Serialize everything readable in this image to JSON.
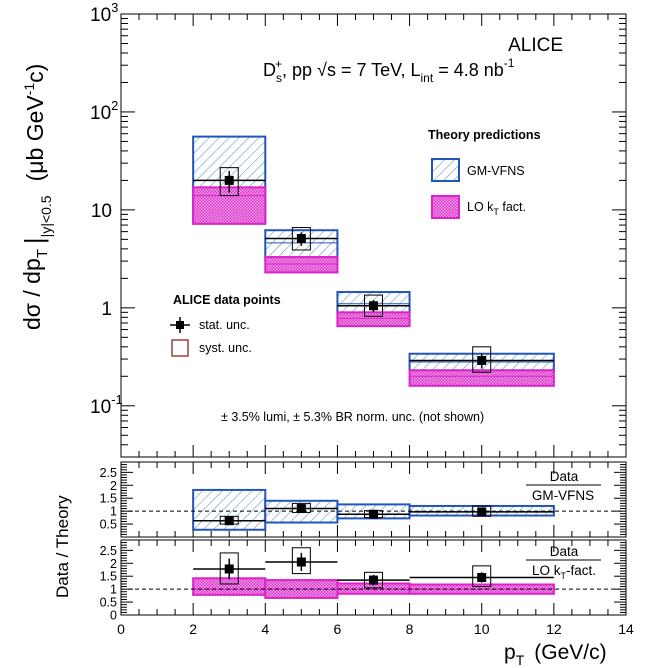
{
  "chart_data": [
    {
      "type": "scatter",
      "panel": "cross-section",
      "experiment": "ALICE",
      "subtitle_parts": {
        "particle": "D",
        "particle_sub": "s",
        "particle_sup": "+",
        "system": ", pp ",
        "energy": "s = 7 TeV, L",
        "lumi_sub": "int",
        "lumi_val": " = 4.8 nb",
        "lumi_sup": "-1"
      },
      "ylabel": "dσ / dp_T |_{|y|<0.5}  (μb GeV^{-1}c)",
      "ylabel_parts": {
        "main": "dσ / dp",
        "sub1": "T",
        "bar": "|",
        "sub2": "|y|<0.5",
        "unit1": "(μb GeV",
        "unit_sup": "-1",
        "unit2": "c)"
      },
      "y_scale": "log",
      "ylim": [
        0.03,
        1000
      ],
      "y_tick_labels": [
        {
          "value": 0.1,
          "base": "10",
          "exp": "-1"
        },
        {
          "value": 1,
          "base": "1",
          "exp": ""
        },
        {
          "value": 10,
          "base": "10",
          "exp": ""
        },
        {
          "value": 100,
          "base": "10",
          "exp": "2"
        },
        {
          "value": 1000,
          "base": "10",
          "exp": "3"
        }
      ],
      "xlim": [
        0,
        14
      ],
      "series": [
        {
          "name": "stat. unc.",
          "points": [
            {
              "x": 3,
              "y": 20,
              "xlo": 2,
              "xhi": 4,
              "ylo": 15,
              "yhi": 25
            },
            {
              "x": 5,
              "y": 5.1,
              "xlo": 4,
              "xhi": 6,
              "ylo": 4.3,
              "yhi": 5.9
            },
            {
              "x": 7,
              "y": 1.05,
              "xlo": 6,
              "xhi": 8,
              "ylo": 0.91,
              "yhi": 1.2
            },
            {
              "x": 10,
              "y": 0.29,
              "xlo": 8,
              "xhi": 12,
              "ylo": 0.24,
              "yhi": 0.34
            }
          ]
        },
        {
          "name": "syst. unc.",
          "boxes": [
            {
              "x": 3,
              "ylo": 14,
              "yhi": 27
            },
            {
              "x": 5,
              "ylo": 3.9,
              "yhi": 6.6
            },
            {
              "x": 7,
              "ylo": 0.82,
              "yhi": 1.35
            },
            {
              "x": 10,
              "ylo": 0.22,
              "yhi": 0.4
            }
          ]
        },
        {
          "name": "GM-VFNS",
          "bands": [
            {
              "xlo": 2,
              "xhi": 4,
              "ylo": 7.5,
              "yhi": 56,
              "central": 20
            },
            {
              "xlo": 4,
              "xhi": 6,
              "ylo": 3.1,
              "yhi": 6.2,
              "central": 4.6
            },
            {
              "xlo": 6,
              "xhi": 8,
              "ylo": 0.85,
              "yhi": 1.45,
              "central": 1.1
            },
            {
              "xlo": 8,
              "xhi": 12,
              "ylo": 0.23,
              "yhi": 0.34,
              "central": 0.28
            }
          ]
        },
        {
          "name": "LO k_T fact.",
          "bands": [
            {
              "xlo": 2,
              "xhi": 4,
              "ylo": 7.2,
              "yhi": 17,
              "central": 14
            },
            {
              "xlo": 4,
              "xhi": 6,
              "ylo": 2.3,
              "yhi": 3.3,
              "central": 2.8
            },
            {
              "xlo": 6,
              "xhi": 8,
              "ylo": 0.65,
              "yhi": 0.9,
              "central": 0.78
            },
            {
              "xlo": 8,
              "xhi": 12,
              "ylo": 0.16,
              "yhi": 0.23,
              "central": 0.2
            }
          ]
        }
      ],
      "legend_theory": {
        "title": "Theory predictions",
        "gmvfns": "GM-VFNS",
        "lo_main": "LO k",
        "lo_sub": "T",
        "lo_rest": " fact."
      },
      "legend_data": {
        "title": "ALICE data points",
        "stat": "stat. unc.",
        "syst": "syst. unc."
      },
      "annotation": "± 3.5% lumi, ± 5.3% BR norm. unc. (not shown)",
      "colors": {
        "gmvfns": "#2255bb",
        "gmvfns_fill": "#c9dcec",
        "lo": "#dd22cc",
        "lo_fill": "#ee88e4",
        "syst": "#881111"
      }
    },
    {
      "type": "scatter",
      "panel": "ratio GM-VFNS",
      "ratio_label_num": "Data",
      "ratio_label_den": "GM-VFNS",
      "ylim": [
        0,
        2.9
      ],
      "y_ticks": [
        "0.5",
        "1",
        "1.5",
        "2",
        "2.5"
      ],
      "y_tick_values": [
        0.5,
        1,
        1.5,
        2,
        2.5
      ],
      "reference_line": 1,
      "points": [
        {
          "x": 3,
          "y": 0.63,
          "ystat": 0.12,
          "sylo": 0.5,
          "syhi": 0.8
        },
        {
          "x": 5,
          "y": 1.1,
          "ystat": 0.12,
          "sylo": 0.95,
          "syhi": 1.3
        },
        {
          "x": 7,
          "y": 0.88,
          "ystat": 0.1,
          "sylo": 0.75,
          "syhi": 1.02
        },
        {
          "x": 10,
          "y": 0.97,
          "ystat": 0.1,
          "sylo": 0.8,
          "syhi": 1.2
        }
      ],
      "bands": [
        {
          "xlo": 2,
          "xhi": 4,
          "ylo": 0.28,
          "yhi": 1.82,
          "central": 0.63
        },
        {
          "xlo": 4,
          "xhi": 6,
          "ylo": 0.56,
          "yhi": 1.4,
          "central": 1.1
        },
        {
          "xlo": 6,
          "xhi": 8,
          "ylo": 0.72,
          "yhi": 1.26,
          "central": 0.88
        },
        {
          "xlo": 8,
          "xhi": 12,
          "ylo": 0.83,
          "yhi": 1.2,
          "central": 0.97
        }
      ]
    },
    {
      "type": "scatter",
      "panel": "ratio LO kT",
      "ratio_label_num": "Data",
      "ratio_label_den_main": "LO k",
      "ratio_label_den_sub": "T",
      "ratio_label_den_rest": "-fact.",
      "ylim": [
        0,
        2.9
      ],
      "y_ticks": [
        "0",
        "0.5",
        "1",
        "1.5",
        "2",
        "2.5"
      ],
      "y_tick_values": [
        0,
        0.5,
        1,
        1.5,
        2,
        2.5
      ],
      "reference_line": 1,
      "points": [
        {
          "x": 3,
          "y": 1.78,
          "ystat": 0.4,
          "sylo": 1.2,
          "syhi": 2.4
        },
        {
          "x": 5,
          "y": 2.05,
          "ystat": 0.35,
          "sylo": 1.6,
          "syhi": 2.6
        },
        {
          "x": 7,
          "y": 1.35,
          "ystat": 0.2,
          "sylo": 1.05,
          "syhi": 1.65
        },
        {
          "x": 10,
          "y": 1.45,
          "ystat": 0.2,
          "sylo": 1.1,
          "syhi": 1.9
        }
      ],
      "bands": [
        {
          "xlo": 2,
          "xhi": 4,
          "ylo": 0.78,
          "yhi": 1.42,
          "central": 1.0
        },
        {
          "xlo": 4,
          "xhi": 6,
          "ylo": 0.66,
          "yhi": 1.35,
          "central": 1.0
        },
        {
          "xlo": 6,
          "xhi": 8,
          "ylo": 0.82,
          "yhi": 1.22,
          "central": 1.0
        },
        {
          "xlo": 8,
          "xhi": 12,
          "ylo": 0.82,
          "yhi": 1.18,
          "central": 1.0
        }
      ]
    }
  ],
  "shared_x_axis": {
    "tick_labels": [
      "0",
      "2",
      "4",
      "6",
      "8",
      "10",
      "12",
      "14"
    ],
    "tick_values": [
      0,
      2,
      4,
      6,
      8,
      10,
      12,
      14
    ],
    "xlabel_main": "p",
    "xlabel_sub": "T",
    "xlabel_unit": "(GeV/c)"
  },
  "ratio_ylabel": "Data  / Theory"
}
